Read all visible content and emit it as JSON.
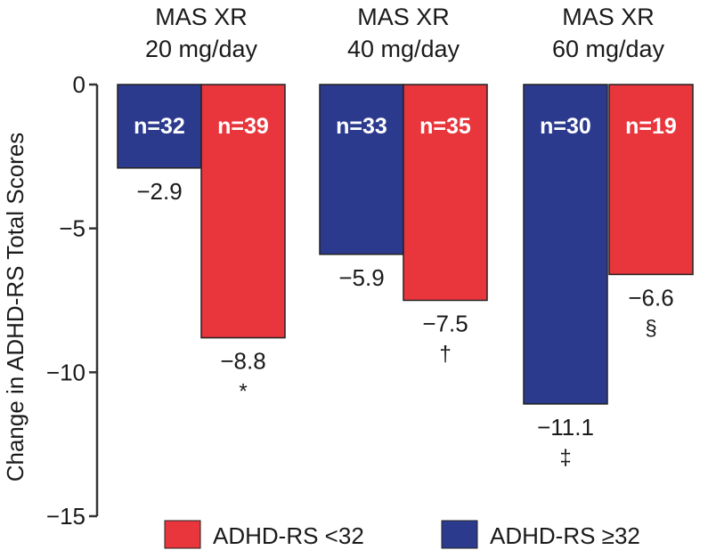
{
  "colors": {
    "red": "#e8363c",
    "blue": "#2c3a8e",
    "axis": "#333333",
    "text": "#1a1a1a"
  },
  "chart_data": {
    "type": "bar",
    "categories": [
      {
        "line1": "MAS XR",
        "line2": "20 mg/day"
      },
      {
        "line1": "MAS XR",
        "line2": "40 mg/day"
      },
      {
        "line1": "MAS XR",
        "line2": "60 mg/day"
      }
    ],
    "series": [
      {
        "name": "ADHD-RS ≥32",
        "color": "blue",
        "values": [
          -2.9,
          -5.9,
          -11.1
        ],
        "n_labels": [
          "n=32",
          "n=33",
          "n=30"
        ],
        "value_labels": [
          "−2.9",
          "−5.9",
          "−11.1"
        ],
        "markers": [
          "",
          "",
          "‡"
        ]
      },
      {
        "name": "ADHD-RS <32",
        "color": "red",
        "values": [
          -8.8,
          -7.5,
          -6.6
        ],
        "n_labels": [
          "n=39",
          "n=35",
          "n=19"
        ],
        "value_labels": [
          "−8.8",
          "−7.5",
          "−6.6"
        ],
        "markers": [
          "*",
          "†",
          "§"
        ]
      }
    ],
    "ylabel": "Change in ADHD-RS Total Scores",
    "ylim": [
      -15,
      0
    ],
    "yticks": [
      0,
      -5,
      -10,
      -15
    ],
    "ytick_labels": [
      "0",
      "−5",
      "−10",
      "−15"
    ],
    "legend": [
      {
        "label": "ADHD-RS <32",
        "color": "red"
      },
      {
        "label": "ADHD-RS ≥32",
        "color": "blue"
      }
    ],
    "legend_position": "bottom",
    "grid": false
  }
}
